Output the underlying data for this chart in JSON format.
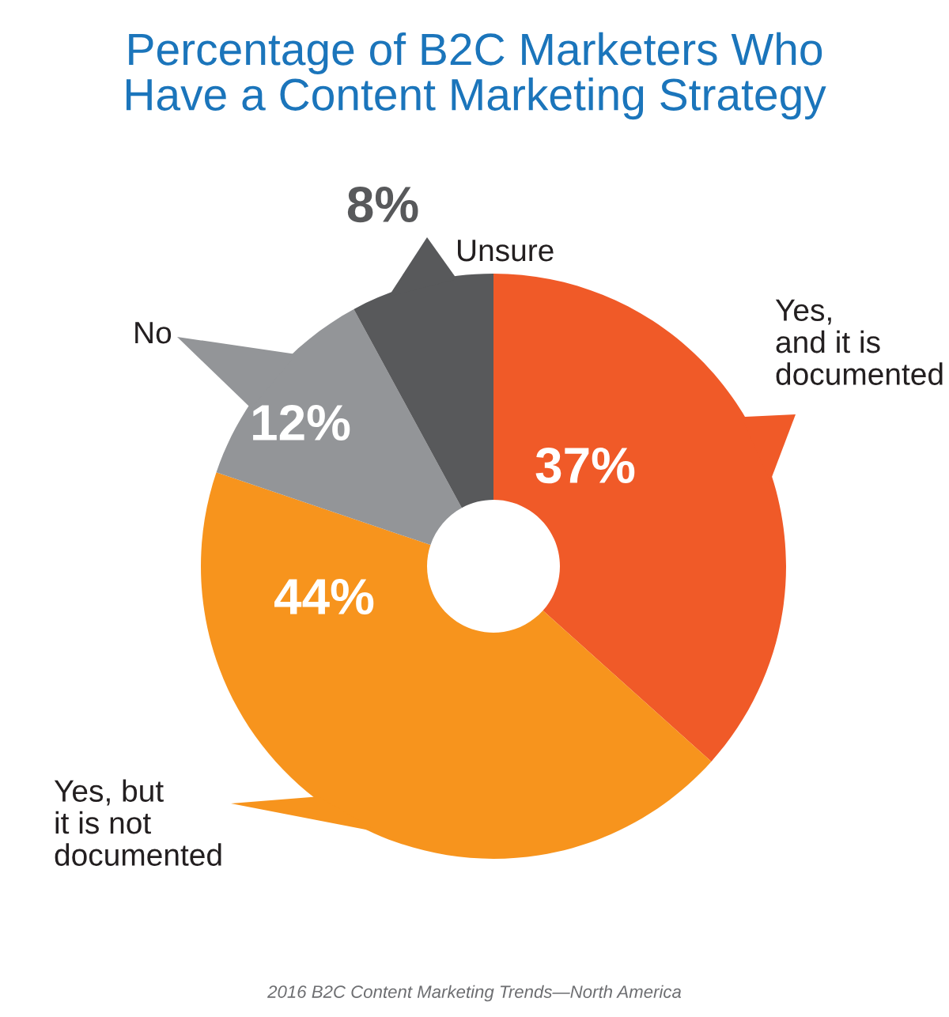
{
  "chart_data": {
    "type": "donut",
    "title": "Percentage of B2C Marketers Who\nHave a Content Marketing Strategy",
    "categories": [
      "Yes,\nand it is\ndocumented",
      "Yes, but\nit is not\ndocumented",
      "No",
      "Unsure"
    ],
    "values": [
      37,
      44,
      12,
      8
    ],
    "value_labels": [
      "37%",
      "44%",
      "12%",
      "8%"
    ],
    "colors": [
      "#f05a28",
      "#f7941d",
      "#939598",
      "#58595b"
    ],
    "annotations": [
      "2016 B2C Content Marketing Trends—North America"
    ]
  }
}
